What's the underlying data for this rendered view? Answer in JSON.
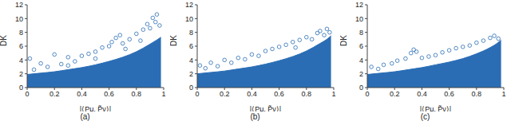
{
  "chart_data": [
    {
      "type": "scatter",
      "title": "(a)",
      "xlabel": "|⟨Pμ, P̃ν⟩|",
      "ylabel": "DK",
      "xlim": [
        0,
        1
      ],
      "ylim": [
        0,
        12
      ],
      "xticks": [
        0,
        0.2,
        0.4,
        0.6,
        0.8,
        1
      ],
      "yticks": [
        0,
        2,
        4,
        6,
        8,
        10,
        12
      ],
      "color": "#2a6db5",
      "grid": false,
      "band": {
        "x": [
          0,
          0.1,
          0.2,
          0.3,
          0.4,
          0.5,
          0.6,
          0.7,
          0.8,
          0.9,
          0.95,
          0.98
        ],
        "upper": [
          1.9,
          2.1,
          2.3,
          2.6,
          2.9,
          3.3,
          3.8,
          4.4,
          5.2,
          6.3,
          6.9,
          7.3
        ]
      },
      "points": {
        "x": [
          0.02,
          0.05,
          0.1,
          0.15,
          0.2,
          0.25,
          0.3,
          0.3,
          0.35,
          0.4,
          0.45,
          0.5,
          0.5,
          0.55,
          0.6,
          0.62,
          0.65,
          0.68,
          0.7,
          0.72,
          0.75,
          0.8,
          0.83,
          0.85,
          0.88,
          0.9,
          0.92,
          0.94,
          0.95,
          0.97
        ],
        "y": [
          4.2,
          2.6,
          3.5,
          3.0,
          4.8,
          3.4,
          4.4,
          3.2,
          3.8,
          4.6,
          4.9,
          5.2,
          4.2,
          5.8,
          6.0,
          6.6,
          7.2,
          7.6,
          6.4,
          5.6,
          7.0,
          7.8,
          6.8,
          8.4,
          9.2,
          8.6,
          10.1,
          9.5,
          10.6,
          9.0
        ]
      }
    },
    {
      "type": "scatter",
      "title": "(b)",
      "xlabel": "|⟨Pμ, P̃ν⟩|",
      "ylabel": "DK",
      "xlim": [
        0,
        1
      ],
      "ylim": [
        0,
        12
      ],
      "xticks": [
        0,
        0.2,
        0.4,
        0.6,
        0.8,
        1
      ],
      "yticks": [
        0,
        2,
        4,
        6,
        8,
        10,
        12
      ],
      "color": "#2a6db5",
      "grid": false,
      "band": {
        "x": [
          0,
          0.1,
          0.2,
          0.3,
          0.4,
          0.5,
          0.6,
          0.7,
          0.8,
          0.9,
          0.95,
          0.98
        ],
        "upper": [
          2.0,
          2.2,
          2.4,
          2.7,
          3.0,
          3.4,
          3.9,
          4.5,
          5.3,
          6.4,
          7.0,
          7.5
        ]
      },
      "points": {
        "x": [
          0.02,
          0.06,
          0.1,
          0.15,
          0.2,
          0.25,
          0.3,
          0.35,
          0.4,
          0.45,
          0.5,
          0.55,
          0.6,
          0.65,
          0.7,
          0.72,
          0.75,
          0.8,
          0.84,
          0.88,
          0.9,
          0.93,
          0.95,
          0.97
        ],
        "y": [
          3.2,
          2.8,
          3.6,
          3.1,
          4.0,
          3.6,
          4.3,
          4.1,
          4.8,
          4.6,
          5.3,
          5.6,
          5.9,
          6.2,
          6.6,
          5.8,
          6.9,
          7.3,
          7.0,
          7.9,
          8.2,
          7.6,
          8.5,
          8.0
        ]
      }
    },
    {
      "type": "scatter",
      "title": "(c)",
      "xlabel": "|⟨Pμ, P̃ν⟩|",
      "ylabel": "DK",
      "xlim": [
        0,
        1
      ],
      "ylim": [
        0,
        12
      ],
      "xticks": [
        0,
        0.2,
        0.4,
        0.6,
        0.8,
        1
      ],
      "yticks": [
        0,
        2,
        4,
        6,
        8,
        10,
        12
      ],
      "color": "#2a6db5",
      "grid": false,
      "band": {
        "x": [
          0,
          0.1,
          0.2,
          0.3,
          0.4,
          0.5,
          0.6,
          0.7,
          0.8,
          0.9,
          0.95,
          0.98
        ],
        "upper": [
          1.9,
          2.1,
          2.3,
          2.6,
          2.9,
          3.3,
          3.7,
          4.2,
          4.9,
          5.8,
          6.4,
          6.9
        ]
      },
      "points": {
        "x": [
          0.03,
          0.08,
          0.12,
          0.18,
          0.22,
          0.28,
          0.32,
          0.34,
          0.36,
          0.4,
          0.45,
          0.5,
          0.55,
          0.6,
          0.65,
          0.7,
          0.75,
          0.8,
          0.85,
          0.9,
          0.93,
          0.96
        ],
        "y": [
          3.0,
          2.7,
          3.3,
          3.5,
          3.9,
          4.2,
          5.0,
          5.5,
          5.2,
          4.3,
          4.5,
          4.7,
          5.1,
          5.4,
          5.7,
          5.9,
          6.1,
          6.5,
          6.8,
          7.2,
          7.5,
          7.1
        ]
      }
    }
  ]
}
